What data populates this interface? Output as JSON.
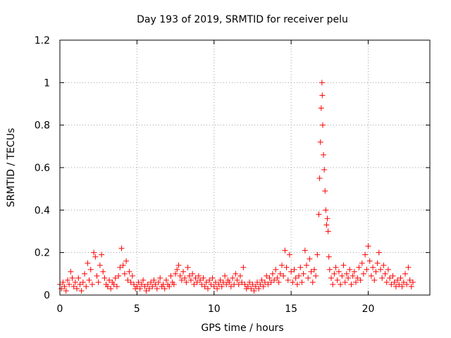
{
  "chart_data": {
    "type": "scatter",
    "title": "Day 193 of 2019, SRMTID for receiver pelu",
    "xlabel": "GPS time / hours",
    "ylabel": "SRMTID / TECUs",
    "xlim": [
      0,
      24
    ],
    "ylim": [
      0,
      1.2
    ],
    "xticks": [
      0,
      5,
      10,
      15,
      20
    ],
    "xtick_labels": [
      "0",
      "5",
      "10",
      "15",
      "20"
    ],
    "yticks": [
      0,
      0.2,
      0.4,
      0.6,
      0.8,
      1,
      1.2
    ],
    "ytick_labels": [
      "0",
      "0.2",
      "0.4",
      "0.6",
      "0.8",
      "1",
      "1.2"
    ],
    "grid": true,
    "marker": "+",
    "color": "#ff0000",
    "series": [
      {
        "name": "SRMTID",
        "points": [
          [
            0.0,
            0.05
          ],
          [
            0.1,
            0.03
          ],
          [
            0.2,
            0.06
          ],
          [
            0.3,
            0.04
          ],
          [
            0.4,
            0.02
          ],
          [
            0.5,
            0.07
          ],
          [
            0.6,
            0.05
          ],
          [
            0.7,
            0.11
          ],
          [
            0.8,
            0.08
          ],
          [
            0.9,
            0.04
          ],
          [
            1.0,
            0.06
          ],
          [
            1.1,
            0.03
          ],
          [
            1.2,
            0.08
          ],
          [
            1.3,
            0.05
          ],
          [
            1.4,
            0.02
          ],
          [
            1.5,
            0.06
          ],
          [
            1.6,
            0.1
          ],
          [
            1.7,
            0.04
          ],
          [
            1.8,
            0.15
          ],
          [
            1.9,
            0.07
          ],
          [
            2.0,
            0.12
          ],
          [
            2.1,
            0.05
          ],
          [
            2.2,
            0.2
          ],
          [
            2.3,
            0.18
          ],
          [
            2.4,
            0.09
          ],
          [
            2.5,
            0.06
          ],
          [
            2.6,
            0.14
          ],
          [
            2.7,
            0.19
          ],
          [
            2.8,
            0.11
          ],
          [
            2.9,
            0.08
          ],
          [
            3.0,
            0.05
          ],
          [
            3.1,
            0.04
          ],
          [
            3.2,
            0.07
          ],
          [
            3.3,
            0.03
          ],
          [
            3.4,
            0.06
          ],
          [
            3.5,
            0.05
          ],
          [
            3.6,
            0.08
          ],
          [
            3.7,
            0.04
          ],
          [
            3.8,
            0.09
          ],
          [
            3.9,
            0.13
          ],
          [
            4.0,
            0.22
          ],
          [
            4.1,
            0.14
          ],
          [
            4.2,
            0.1
          ],
          [
            4.3,
            0.16
          ],
          [
            4.4,
            0.07
          ],
          [
            4.5,
            0.11
          ],
          [
            4.6,
            0.06
          ],
          [
            4.7,
            0.09
          ],
          [
            4.8,
            0.05
          ],
          [
            4.9,
            0.03
          ],
          [
            5.0,
            0.04
          ],
          [
            5.1,
            0.06
          ],
          [
            5.2,
            0.03
          ],
          [
            5.3,
            0.05
          ],
          [
            5.4,
            0.07
          ],
          [
            5.5,
            0.04
          ],
          [
            5.6,
            0.02
          ],
          [
            5.7,
            0.05
          ],
          [
            5.8,
            0.03
          ],
          [
            5.9,
            0.06
          ],
          [
            6.0,
            0.04
          ],
          [
            6.1,
            0.07
          ],
          [
            6.2,
            0.05
          ],
          [
            6.3,
            0.03
          ],
          [
            6.4,
            0.06
          ],
          [
            6.5,
            0.08
          ],
          [
            6.6,
            0.04
          ],
          [
            6.7,
            0.05
          ],
          [
            6.8,
            0.03
          ],
          [
            6.9,
            0.07
          ],
          [
            7.0,
            0.05
          ],
          [
            7.1,
            0.04
          ],
          [
            7.2,
            0.09
          ],
          [
            7.3,
            0.06
          ],
          [
            7.4,
            0.05
          ],
          [
            7.5,
            0.1
          ],
          [
            7.6,
            0.12
          ],
          [
            7.7,
            0.14
          ],
          [
            7.8,
            0.09
          ],
          [
            7.9,
            0.07
          ],
          [
            8.0,
            0.11
          ],
          [
            8.1,
            0.08
          ],
          [
            8.2,
            0.06
          ],
          [
            8.3,
            0.13
          ],
          [
            8.4,
            0.09
          ],
          [
            8.5,
            0.07
          ],
          [
            8.6,
            0.1
          ],
          [
            8.7,
            0.05
          ],
          [
            8.8,
            0.08
          ],
          [
            8.9,
            0.06
          ],
          [
            9.0,
            0.09
          ],
          [
            9.1,
            0.07
          ],
          [
            9.2,
            0.05
          ],
          [
            9.3,
            0.08
          ],
          [
            9.4,
            0.04
          ],
          [
            9.5,
            0.06
          ],
          [
            9.6,
            0.03
          ],
          [
            9.7,
            0.07
          ],
          [
            9.8,
            0.05
          ],
          [
            9.9,
            0.08
          ],
          [
            10.0,
            0.04
          ],
          [
            10.1,
            0.06
          ],
          [
            10.2,
            0.03
          ],
          [
            10.3,
            0.05
          ],
          [
            10.4,
            0.07
          ],
          [
            10.5,
            0.04
          ],
          [
            10.6,
            0.06
          ],
          [
            10.7,
            0.09
          ],
          [
            10.8,
            0.05
          ],
          [
            10.9,
            0.07
          ],
          [
            11.0,
            0.06
          ],
          [
            11.1,
            0.04
          ],
          [
            11.2,
            0.08
          ],
          [
            11.3,
            0.05
          ],
          [
            11.4,
            0.1
          ],
          [
            11.5,
            0.07
          ],
          [
            11.6,
            0.05
          ],
          [
            11.7,
            0.09
          ],
          [
            11.8,
            0.06
          ],
          [
            11.9,
            0.13
          ],
          [
            12.0,
            0.05
          ],
          [
            12.1,
            0.03
          ],
          [
            12.2,
            0.04
          ],
          [
            12.3,
            0.06
          ],
          [
            12.4,
            0.03
          ],
          [
            12.5,
            0.05
          ],
          [
            12.6,
            0.02
          ],
          [
            12.7,
            0.04
          ],
          [
            12.8,
            0.06
          ],
          [
            12.9,
            0.03
          ],
          [
            13.0,
            0.05
          ],
          [
            13.1,
            0.07
          ],
          [
            13.2,
            0.04
          ],
          [
            13.3,
            0.06
          ],
          [
            13.4,
            0.09
          ],
          [
            13.5,
            0.05
          ],
          [
            13.6,
            0.08
          ],
          [
            13.7,
            0.06
          ],
          [
            13.8,
            0.1
          ],
          [
            13.9,
            0.07
          ],
          [
            14.0,
            0.12
          ],
          [
            14.1,
            0.08
          ],
          [
            14.2,
            0.06
          ],
          [
            14.3,
            0.1
          ],
          [
            14.4,
            0.14
          ],
          [
            14.5,
            0.09
          ],
          [
            14.6,
            0.21
          ],
          [
            14.7,
            0.13
          ],
          [
            14.8,
            0.07
          ],
          [
            14.9,
            0.19
          ],
          [
            15.0,
            0.11
          ],
          [
            15.1,
            0.06
          ],
          [
            15.2,
            0.12
          ],
          [
            15.3,
            0.08
          ],
          [
            15.4,
            0.05
          ],
          [
            15.5,
            0.09
          ],
          [
            15.6,
            0.13
          ],
          [
            15.7,
            0.06
          ],
          [
            15.8,
            0.1
          ],
          [
            15.9,
            0.21
          ],
          [
            16.0,
            0.14
          ],
          [
            16.1,
            0.08
          ],
          [
            16.2,
            0.17
          ],
          [
            16.3,
            0.11
          ],
          [
            16.4,
            0.06
          ],
          [
            16.5,
            0.12
          ],
          [
            16.6,
            0.09
          ],
          [
            16.7,
            0.19
          ],
          [
            16.8,
            0.38
          ],
          [
            16.85,
            0.55
          ],
          [
            16.9,
            0.72
          ],
          [
            16.95,
            0.88
          ],
          [
            17.0,
            1.0
          ],
          [
            17.02,
            0.94
          ],
          [
            17.05,
            0.8
          ],
          [
            17.1,
            0.66
          ],
          [
            17.15,
            0.59
          ],
          [
            17.2,
            0.49
          ],
          [
            17.25,
            0.4
          ],
          [
            17.3,
            0.33
          ],
          [
            17.35,
            0.36
          ],
          [
            17.4,
            0.3
          ],
          [
            17.45,
            0.18
          ],
          [
            17.5,
            0.12
          ],
          [
            17.6,
            0.08
          ],
          [
            17.7,
            0.05
          ],
          [
            17.8,
            0.1
          ],
          [
            17.9,
            0.13
          ],
          [
            18.0,
            0.07
          ],
          [
            18.1,
            0.11
          ],
          [
            18.2,
            0.05
          ],
          [
            18.3,
            0.09
          ],
          [
            18.4,
            0.14
          ],
          [
            18.5,
            0.06
          ],
          [
            18.6,
            0.1
          ],
          [
            18.7,
            0.08
          ],
          [
            18.8,
            0.12
          ],
          [
            18.9,
            0.05
          ],
          [
            19.0,
            0.09
          ],
          [
            19.1,
            0.11
          ],
          [
            19.2,
            0.06
          ],
          [
            19.3,
            0.08
          ],
          [
            19.4,
            0.13
          ],
          [
            19.5,
            0.07
          ],
          [
            19.6,
            0.15
          ],
          [
            19.7,
            0.1
          ],
          [
            19.8,
            0.19
          ],
          [
            19.9,
            0.12
          ],
          [
            20.0,
            0.23
          ],
          [
            20.1,
            0.16
          ],
          [
            20.2,
            0.09
          ],
          [
            20.3,
            0.13
          ],
          [
            20.4,
            0.07
          ],
          [
            20.5,
            0.11
          ],
          [
            20.6,
            0.15
          ],
          [
            20.7,
            0.2
          ],
          [
            20.8,
            0.12
          ],
          [
            20.9,
            0.08
          ],
          [
            21.0,
            0.14
          ],
          [
            21.1,
            0.1
          ],
          [
            21.2,
            0.06
          ],
          [
            21.3,
            0.12
          ],
          [
            21.4,
            0.08
          ],
          [
            21.5,
            0.05
          ],
          [
            21.6,
            0.09
          ],
          [
            21.7,
            0.06
          ],
          [
            21.8,
            0.04
          ],
          [
            21.9,
            0.07
          ],
          [
            22.0,
            0.05
          ],
          [
            22.1,
            0.08
          ],
          [
            22.2,
            0.04
          ],
          [
            22.3,
            0.06
          ],
          [
            22.4,
            0.1
          ],
          [
            22.5,
            0.05
          ],
          [
            22.6,
            0.13
          ],
          [
            22.7,
            0.07
          ],
          [
            22.8,
            0.04
          ],
          [
            22.9,
            0.06
          ]
        ]
      }
    ]
  }
}
